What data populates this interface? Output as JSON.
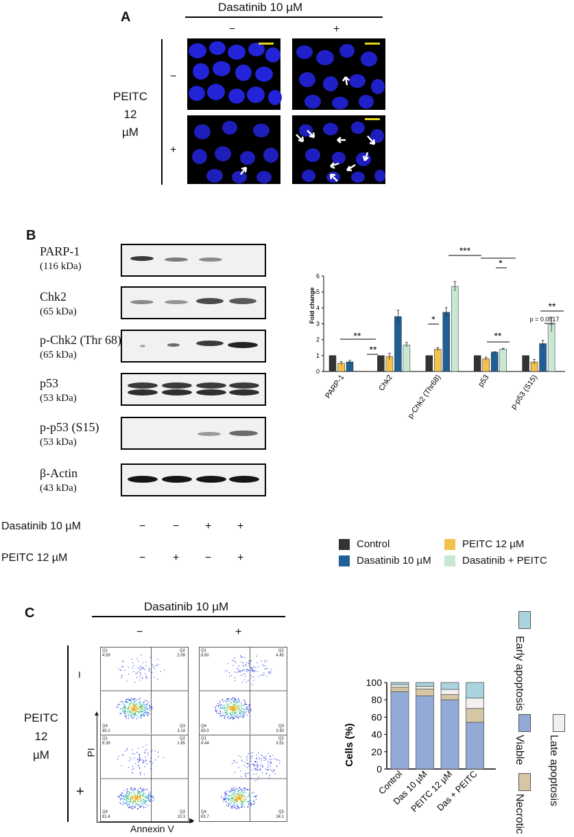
{
  "panelA": {
    "letter": "A",
    "treatment_header": "Dasatinib 10 µM",
    "col_minus": "−",
    "col_plus": "+",
    "row_label_lines": [
      "PEITC",
      "12",
      "µM"
    ],
    "row_minus": "−",
    "row_plus": "+"
  },
  "panelB": {
    "letter": "B",
    "blots": [
      {
        "name": "PARP-1",
        "kda": "(116 kDa)"
      },
      {
        "name": "Chk2",
        "kda": "(65 kDa)"
      },
      {
        "name": "p-Chk2 (Thr 68)",
        "kda": "(65 kDa)"
      },
      {
        "name": "p53",
        "kda": "(53 kDa)"
      },
      {
        "name": "p-p53 (S15)",
        "kda": "(53 kDa)"
      },
      {
        "name": "β-Actin",
        "kda": "(43 kDa)"
      }
    ],
    "treat_rows": [
      {
        "label": "Dasatinib 10 µM",
        "signs": [
          "−",
          "−",
          "+",
          "+"
        ]
      },
      {
        "label": "PEITC 12 µM",
        "signs": [
          "−",
          "+",
          "−",
          "+"
        ]
      }
    ]
  },
  "chart_data": [
    {
      "type": "bar",
      "ylabel": "Fold change",
      "ylim": [
        0,
        6
      ],
      "yticks": [
        "0",
        "1",
        "2",
        "3",
        "4",
        "5",
        "6"
      ],
      "categories": [
        "PARP-1",
        "Chk2",
        "p-Chk2 (Thr68)",
        "p53",
        "p-p53 (S15)"
      ],
      "series": [
        {
          "name": "Control",
          "color": "#333333",
          "values": [
            1.0,
            1.0,
            1.0,
            1.0,
            1.0
          ],
          "errors": [
            0,
            0,
            0,
            0,
            0
          ]
        },
        {
          "name": "PEITC 12 µM",
          "color": "#f2c14e",
          "values": [
            0.52,
            0.95,
            1.4,
            0.8,
            0.6
          ],
          "errors": [
            0.1,
            0.2,
            0.1,
            0.1,
            0.15
          ]
        },
        {
          "name": "Dasatinib 10 µM",
          "color": "#1f5f96",
          "values": [
            0.6,
            3.45,
            3.72,
            1.22,
            1.75
          ],
          "errors": [
            0.1,
            0.4,
            0.3,
            0.02,
            0.2
          ]
        },
        {
          "name": "Dasatinib + PEITC",
          "color": "#c9e8d4",
          "values": [
            0.02,
            1.67,
            5.35,
            1.4,
            2.95
          ],
          "errors": [
            0,
            0.15,
            0.3,
            0.06,
            0.45
          ]
        }
      ],
      "annotations": [
        "**",
        "**",
        "*",
        "***",
        "*",
        "**",
        "**",
        "p = 0.0517"
      ],
      "legend": "bottom"
    },
    {
      "type": "bar",
      "stacked": true,
      "ylabel": "Cells (%)",
      "ylim": [
        0,
        100
      ],
      "yticks": [
        "0",
        "20",
        "40",
        "60",
        "80",
        "100"
      ],
      "categories": [
        "Control",
        "Das 10 µM",
        "PEITC 12 µM",
        "Das + PEITC"
      ],
      "series": [
        {
          "name": "Viable",
          "color": "#93a9d6",
          "values": [
            89.5,
            84.5,
            80,
            54
          ]
        },
        {
          "name": "Necrotic",
          "color": "#d5c7a6",
          "values": [
            5,
            8,
            6,
            16
          ]
        },
        {
          "name": "Late apoptosis",
          "color": "#f2f0ee",
          "values": [
            3,
            3,
            6,
            12
          ]
        },
        {
          "name": "Early apoptosis",
          "color": "#a9d3df",
          "values": [
            2.5,
            4.5,
            8,
            18
          ]
        }
      ],
      "legend": "right"
    }
  ],
  "chart_legend_B": [
    "Control",
    "PEITC 12 µM",
    "Dasatinib 10 µM",
    "Dasatinib + PEITC"
  ],
  "panelC": {
    "letter": "C",
    "treatment_header": "Dasatinib 10 µM",
    "col_minus": "−",
    "col_plus": "+",
    "row_label_lines": [
      "PEITC",
      "12",
      "µM"
    ],
    "row_minus": "−",
    "row_plus": "+",
    "y_axis": "PI",
    "x_axis": "Annexin V",
    "flow_plots": [
      {
        "q1": [
          "Q1",
          "4.59"
        ],
        "q2": [
          "Q2",
          "2.09"
        ],
        "q4": [
          "Q4",
          "90.2"
        ],
        "q3": [
          "Q3",
          "3.14"
        ]
      },
      {
        "q1": [
          "Q1",
          "8.60"
        ],
        "q2": [
          "Q2",
          "4.45"
        ],
        "q4": [
          "Q4",
          "83.0"
        ],
        "q3": [
          "Q3",
          "3.90"
        ]
      },
      {
        "q1": [
          "Q1",
          "6.39"
        ],
        "q2": [
          "Q2",
          "1.85"
        ],
        "q4": [
          "Q4",
          "81.4"
        ],
        "q3": [
          "Q3",
          "10.3"
        ]
      },
      {
        "q1": [
          "Q1",
          "8.44"
        ],
        "q2": [
          "Q2",
          "3.51"
        ],
        "q4": [
          "Q4",
          "63.7"
        ],
        "q3": [
          "Q3",
          "24.1"
        ]
      }
    ],
    "legend_labels": [
      "Early apoptosis",
      "Viable",
      "Late apoptosis",
      "Necrotic"
    ]
  }
}
